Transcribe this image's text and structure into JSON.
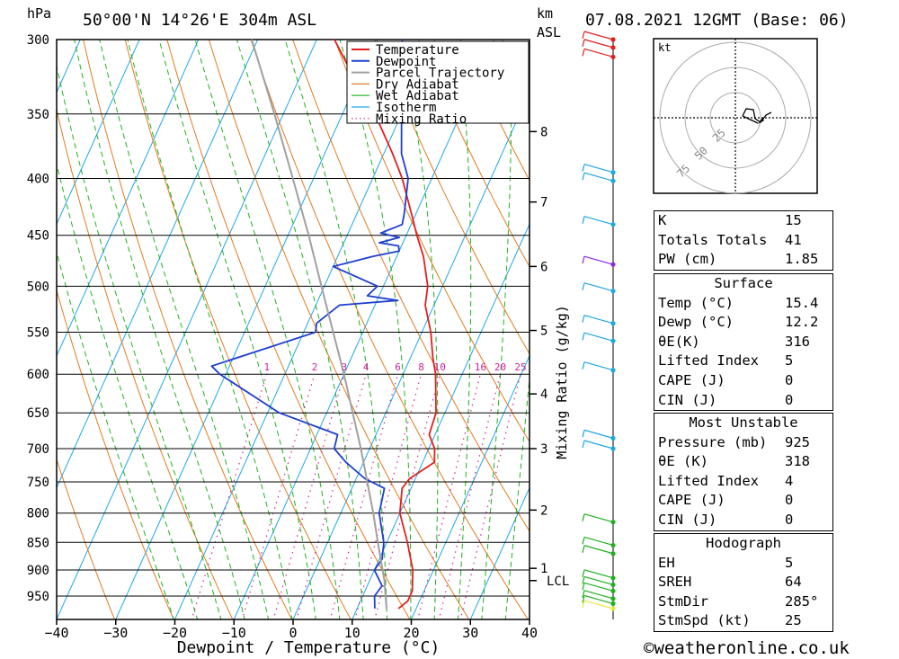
{
  "header": {
    "left_unit": "hPa",
    "location": "50°00'N 14°26'E 304m ASL",
    "km_unit": "km",
    "asl": "ASL",
    "datetime": "07.08.2021 12GMT (Base: 06)"
  },
  "colors": {
    "temperature": "#e02020",
    "dewpoint": "#1f3fd0",
    "parcel": "#a0a0a0",
    "dry_adiabat": "#e07b20",
    "wet_adiabat": "#20b020",
    "isotherm": "#1ea7e6",
    "mixing_ratio": "#d0209a"
  },
  "chart_data": {
    "type": "line",
    "subtype": "skew-T log-p diagram",
    "xlabel": "Dewpoint / Temperature (°C)",
    "ylabel": "",
    "xlim": [
      -40,
      40
    ],
    "x_ticks": [
      -40,
      -30,
      -20,
      -10,
      0,
      10,
      20,
      30,
      40
    ],
    "pressure_levels": [
      300,
      350,
      400,
      450,
      500,
      550,
      600,
      650,
      700,
      750,
      800,
      850,
      900,
      950
    ],
    "height_km_ticks": [
      {
        "km": "1",
        "p": 897
      },
      {
        "km": "2",
        "p": 795
      },
      {
        "km": "3",
        "p": 700
      },
      {
        "km": "4",
        "p": 625
      },
      {
        "km": "5",
        "p": 548
      },
      {
        "km": "6",
        "p": 480
      },
      {
        "km": "7",
        "p": 420
      },
      {
        "km": "8",
        "p": 363
      }
    ],
    "lcl_label": "LCL",
    "lcl_p": 920,
    "mixing_ratio_axis_label": "Mixing Ratio (g/kg)",
    "mixing_ratio_labels": [
      "1",
      "2",
      "3",
      "4",
      "6",
      "8",
      "10",
      "16",
      "20",
      "25"
    ],
    "legend": [
      "Temperature",
      "Dewpoint",
      "Parcel Trajectory",
      "Dry Adiabat",
      "Wet Adiabat",
      "Isotherm",
      "Mixing Ratio"
    ],
    "series": [
      {
        "name": "Temperature",
        "color": "#e02020",
        "points": [
          [
            975,
            17
          ],
          [
            960,
            18
          ],
          [
            940,
            18
          ],
          [
            900,
            16.5
          ],
          [
            850,
            13.5
          ],
          [
            800,
            10
          ],
          [
            760,
            8.5
          ],
          [
            745,
            9
          ],
          [
            720,
            12
          ],
          [
            700,
            11
          ],
          [
            680,
            9
          ],
          [
            650,
            8.5
          ],
          [
            600,
            5.5
          ],
          [
            580,
            3.8
          ],
          [
            550,
            1.5
          ],
          [
            520,
            -1.5
          ],
          [
            500,
            -2.5
          ],
          [
            470,
            -5.5
          ],
          [
            450,
            -8.2
          ],
          [
            430,
            -10.8
          ],
          [
            400,
            -15
          ],
          [
            380,
            -18.5
          ],
          [
            350,
            -24.5
          ],
          [
            330,
            -29.5
          ],
          [
            300,
            -37
          ]
        ]
      },
      {
        "name": "Dewpoint",
        "color": "#1f3fd0",
        "points": [
          [
            975,
            13
          ],
          [
            950,
            12
          ],
          [
            930,
            12.5
          ],
          [
            900,
            10
          ],
          [
            880,
            10.5
          ],
          [
            850,
            9.5
          ],
          [
            800,
            6.5
          ],
          [
            760,
            5.5
          ],
          [
            745,
            1.5
          ],
          [
            720,
            -3
          ],
          [
            700,
            -6
          ],
          [
            680,
            -6.5
          ],
          [
            650,
            -18
          ],
          [
            600,
            -31
          ],
          [
            590,
            -33
          ],
          [
            550,
            -18
          ],
          [
            540,
            -18.5
          ],
          [
            520,
            -16
          ],
          [
            515,
            -6.5
          ],
          [
            510,
            -12
          ],
          [
            500,
            -11
          ],
          [
            480,
            -20
          ],
          [
            470,
            -14
          ],
          [
            465,
            -10
          ],
          [
            460,
            -10.5
          ],
          [
            457,
            -14
          ],
          [
            452,
            -11
          ],
          [
            448,
            -14.5
          ],
          [
            440,
            -11.5
          ],
          [
            430,
            -12
          ],
          [
            400,
            -14
          ],
          [
            380,
            -17
          ],
          [
            350,
            -20
          ],
          [
            300,
            -25.5
          ]
        ]
      },
      {
        "name": "Parcel Trajectory",
        "color": "#a0a0a0",
        "points": [
          [
            975,
            15
          ],
          [
            920,
            12.5
          ],
          [
            850,
            8.5
          ],
          [
            800,
            5.5
          ],
          [
            700,
            -1.5
          ],
          [
            600,
            -10
          ],
          [
            500,
            -20.5
          ],
          [
            450,
            -26.5
          ],
          [
            400,
            -33.5
          ],
          [
            350,
            -41.5
          ],
          [
            300,
            -51
          ]
        ]
      }
    ],
    "wind_barbs": [
      {
        "p": 300,
        "color": "#e02020"
      },
      {
        "p": 305,
        "color": "#e02020"
      },
      {
        "p": 311,
        "color": "#e02020"
      },
      {
        "p": 395,
        "color": "#1ea7e6"
      },
      {
        "p": 402,
        "color": "#1ea7e6"
      },
      {
        "p": 440,
        "color": "#1ea7e6"
      },
      {
        "p": 478,
        "color": "#8a2be2"
      },
      {
        "p": 505,
        "color": "#1ea7e6"
      },
      {
        "p": 540,
        "color": "#1ea7e6"
      },
      {
        "p": 560,
        "color": "#1ea7e6"
      },
      {
        "p": 595,
        "color": "#1ea7e6"
      },
      {
        "p": 685,
        "color": "#1ea7e6"
      },
      {
        "p": 700,
        "color": "#1ea7e6"
      },
      {
        "p": 815,
        "color": "#20b020"
      },
      {
        "p": 855,
        "color": "#20b020"
      },
      {
        "p": 870,
        "color": "#20b020"
      },
      {
        "p": 915,
        "color": "#20b020"
      },
      {
        "p": 928,
        "color": "#20b020"
      },
      {
        "p": 940,
        "color": "#20b020"
      },
      {
        "p": 955,
        "color": "#20b020"
      },
      {
        "p": 965,
        "color": "#20b020"
      },
      {
        "p": 975,
        "color": "#e8e840"
      }
    ]
  },
  "hodograph": {
    "unit": "kt",
    "rings": [
      "25",
      "50",
      "75"
    ]
  },
  "indices": {
    "rows": [
      {
        "label": "K",
        "value": "15"
      },
      {
        "label": "Totals Totals",
        "value": "41"
      },
      {
        "label": "PW (cm)",
        "value": "1.85"
      }
    ]
  },
  "surface": {
    "title": "Surface",
    "rows": [
      {
        "label": "Temp (°C)",
        "value": "15.4"
      },
      {
        "label": "Dewp (°C)",
        "value": "12.2"
      },
      {
        "label": "θE(K)",
        "value": "316"
      },
      {
        "label": "Lifted Index",
        "value": "5"
      },
      {
        "label": "CAPE (J)",
        "value": "0"
      },
      {
        "label": "CIN (J)",
        "value": "0"
      }
    ]
  },
  "most_unstable": {
    "title": "Most Unstable",
    "rows": [
      {
        "label": "Pressure (mb)",
        "value": "925"
      },
      {
        "label": "θE (K)",
        "value": "318"
      },
      {
        "label": "Lifted Index",
        "value": "4"
      },
      {
        "label": "CAPE (J)",
        "value": "0"
      },
      {
        "label": "CIN (J)",
        "value": "0"
      }
    ]
  },
  "hodograph_table": {
    "title": "Hodograph",
    "rows": [
      {
        "label": "EH",
        "value": "5"
      },
      {
        "label": "SREH",
        "value": "64"
      },
      {
        "label": "StmDir",
        "value": "285°"
      },
      {
        "label": "StmSpd (kt)",
        "value": "25"
      }
    ]
  },
  "footer": {
    "copyright": "©weatheronline.co.uk"
  }
}
